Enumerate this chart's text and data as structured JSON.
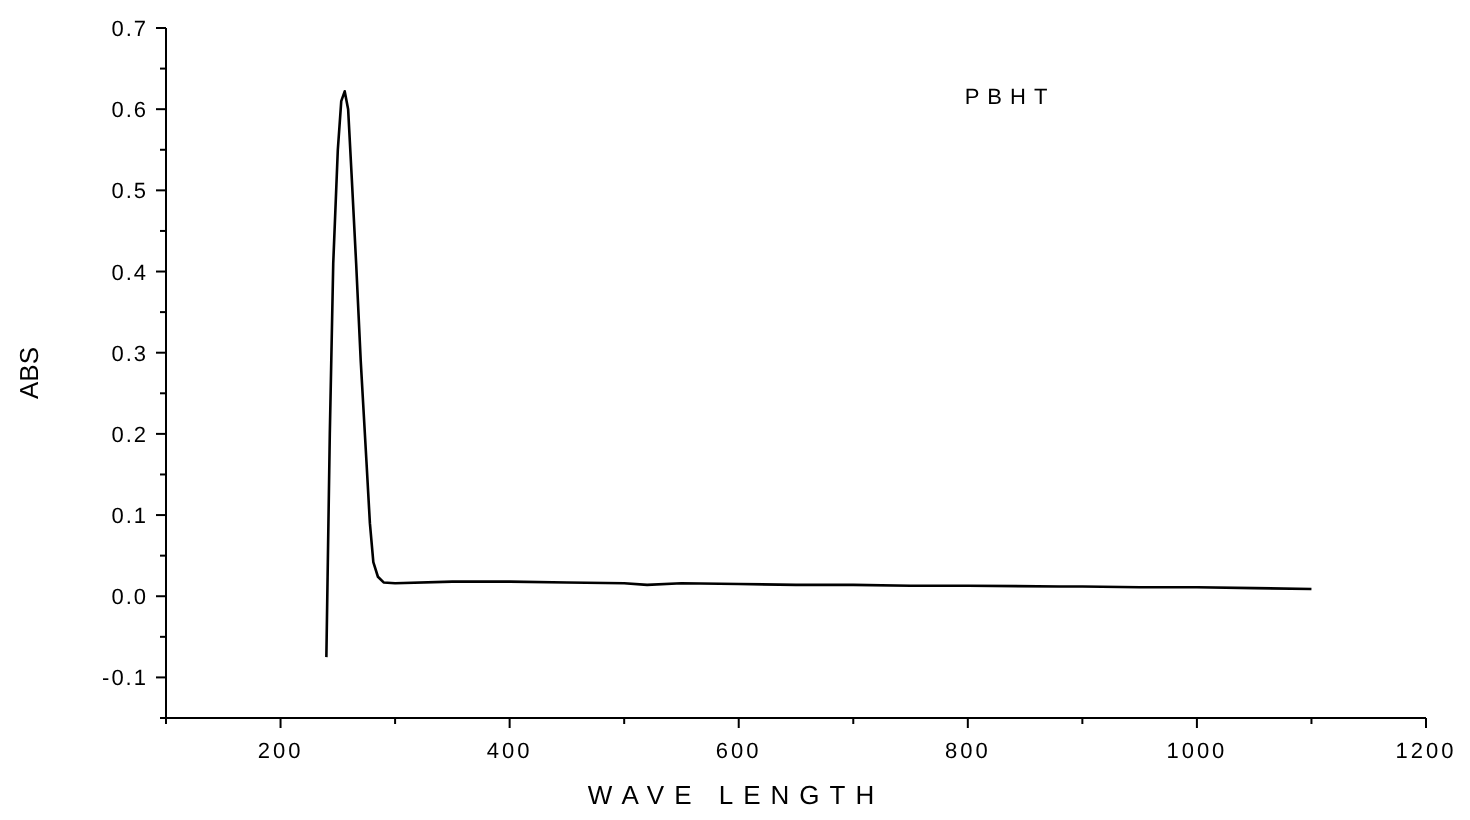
{
  "chart_data": {
    "type": "line",
    "xlabel": "WAVE LENGTH",
    "ylabel": "ABS",
    "annotations": [
      "PBHT"
    ],
    "series": [
      {
        "color": "#000000",
        "x": [
          240,
          243,
          246,
          250,
          253,
          256,
          259,
          262,
          266,
          270,
          275,
          278,
          281,
          285,
          290,
          300,
          350,
          400,
          450,
          500,
          520,
          550,
          600,
          650,
          700,
          750,
          800,
          880,
          900,
          950,
          1000,
          1050,
          1100
        ],
        "values": [
          -0.075,
          0.2,
          0.41,
          0.55,
          0.61,
          0.622,
          0.6,
          0.52,
          0.41,
          0.29,
          0.166,
          0.09,
          0.042,
          0.024,
          0.017,
          0.016,
          0.018,
          0.018,
          0.017,
          0.016,
          0.014,
          0.016,
          0.015,
          0.014,
          0.014,
          0.013,
          0.013,
          0.012,
          0.012,
          0.011,
          0.011,
          0.01,
          0.009
        ]
      }
    ],
    "xlim": [
      100,
      1200
    ],
    "xticks": [
      {
        "value": 100,
        "label": null
      },
      200,
      {
        "value": 300,
        "label": null
      },
      400,
      {
        "value": 500,
        "label": null
      },
      600,
      {
        "value": 700,
        "label": null
      },
      800,
      {
        "value": 900,
        "label": null
      },
      1000,
      {
        "value": 1100,
        "label": null
      },
      1200
    ],
    "ylim": [
      -0.15,
      0.7
    ],
    "yticks": [
      {
        "value": -0.15,
        "label": null
      },
      {
        "value": -0.1,
        "label": "-0.1"
      },
      {
        "value": -0.05,
        "label": null
      },
      {
        "value": 0,
        "label": "0.0"
      },
      {
        "value": 0.05,
        "label": null
      },
      {
        "value": 0.1,
        "label": "0.1"
      },
      {
        "value": 0.15,
        "label": null
      },
      {
        "value": 0.2,
        "label": "0.2"
      },
      {
        "value": 0.25,
        "label": null
      },
      {
        "value": 0.3,
        "label": "0.3"
      },
      {
        "value": 0.35,
        "label": null
      },
      {
        "value": 0.4,
        "label": "0.4"
      },
      {
        "value": 0.45,
        "label": null
      },
      {
        "value": 0.5,
        "label": "0.5"
      },
      {
        "value": 0.55,
        "label": null
      },
      {
        "value": 0.6,
        "label": "0.6"
      },
      {
        "value": 0.65,
        "label": null
      },
      {
        "value": 0.7,
        "label": "0.7"
      }
    ],
    "grid": false,
    "marker": "none",
    "line_style": "solid"
  }
}
